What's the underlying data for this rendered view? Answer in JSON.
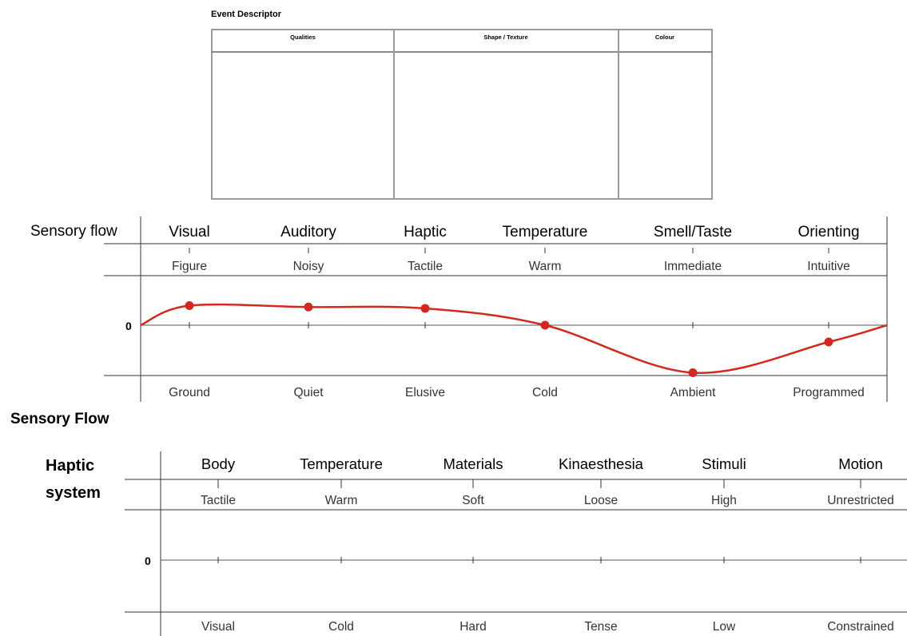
{
  "event_descriptor": {
    "title": "Event Descriptor",
    "columns": [
      "Qualities",
      "Shape / Texture",
      "Colour"
    ]
  },
  "sensory_flow": {
    "row_label": "Sensory flow",
    "caption": "Sensory Flow",
    "zero_label": "0",
    "categories": [
      "Visual",
      "Auditory",
      "Haptic",
      "Temperature",
      "Smell/Taste",
      "Orienting"
    ],
    "top_labels": [
      "Figure",
      "Noisy",
      "Tactile",
      "Warm",
      "Immediate",
      "Intuitive"
    ],
    "bottom_labels": [
      "Ground",
      "Quiet",
      "Elusive",
      "Cold",
      "Ambient",
      "Programmed"
    ],
    "line_color": "#d3281d"
  },
  "haptic_system": {
    "row_label_line1": "Haptic",
    "row_label_line2": "system",
    "zero_label": "0",
    "categories": [
      "Body",
      "Temperature",
      "Materials",
      "Kinaesthesia",
      "Stimuli",
      "Motion"
    ],
    "top_labels": [
      "Tactile",
      "Warm",
      "Soft",
      "Loose",
      "High",
      "Unrestricted"
    ],
    "bottom_labels": [
      "Visual",
      "Cold",
      "Hard",
      "Tense",
      "Low",
      "Constrained"
    ]
  },
  "chart_data": [
    {
      "type": "line",
      "x": [
        "Visual",
        "Auditory",
        "Haptic",
        "Temperature",
        "Smell/Taste",
        "Orienting"
      ],
      "series": [
        {
          "values": [
            0.7,
            0.65,
            0.6,
            0.0,
            -1.7,
            -0.6
          ]
        }
      ],
      "ylim": [
        -2,
        2
      ],
      "xlabel": "",
      "ylabel": ""
    }
  ]
}
